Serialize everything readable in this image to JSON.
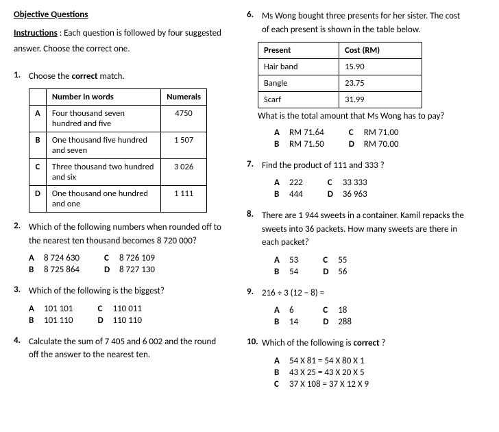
{
  "heading": "Objective Questions",
  "instructions_label": "Instructions",
  "instructions_text": " : Each question is followed by four suggested answer. Choose the correct one.",
  "q1": {
    "num": "1.",
    "text_pre": "Choose the ",
    "text_bold": "correct",
    "text_post": " match.",
    "headers": [
      "",
      "Number in words",
      "Numerals"
    ],
    "rows": [
      {
        "l": "A",
        "words": "Four thousand seven hundred and five",
        "num": "4750"
      },
      {
        "l": "B",
        "words": "One thousand five hundred and seven",
        "num": "1 507"
      },
      {
        "l": "C",
        "words": "Three thousand two hundred and six",
        "num": "3 026"
      },
      {
        "l": "D",
        "words": "One thousand one hundred and one",
        "num": "1 111"
      }
    ]
  },
  "q2": {
    "num": "2.",
    "text": "Which of the following numbers when rounded off to the nearest ten thousand becomes 8 720 000?",
    "opts": {
      "A": "8 724 630",
      "B": "8 725 864",
      "C": "8 726 109",
      "D": "8 727 130"
    }
  },
  "q3": {
    "num": "3.",
    "text": "Which of the following is the biggest?",
    "opts": {
      "A": "101 101",
      "B": "101 110",
      "C": "110 011",
      "D": "110 110"
    }
  },
  "q4": {
    "num": "4.",
    "text": "Calculate the sum of 7 405 and 6 002 and the round off the answer to the nearest ten."
  },
  "q6": {
    "num": "6.",
    "text": "Ms Wong bought three presents for her sister. The cost of each present is shown in the table below.",
    "headers": [
      "Present",
      "Cost (RM)"
    ],
    "rows": [
      {
        "p": "Hair band",
        "c": "15.90"
      },
      {
        "p": "Bangle",
        "c": "23.75"
      },
      {
        "p": "Scarf",
        "c": "31.99"
      }
    ],
    "followup": "What is the total amount that Ms Wong has to pay?",
    "opts": {
      "A": "RM 71.64",
      "B": "RM 71.50",
      "C": "RM 71.00",
      "D": "RM 70.00"
    }
  },
  "q7": {
    "num": "7.",
    "text": "Find the product of 111 and 333 ?",
    "opts": {
      "A": "222",
      "B": "444",
      "C": "33 333",
      "D": "36 963"
    }
  },
  "q8": {
    "num": "8.",
    "text": "There are 1 944 sweets in a container. Kamil repacks the sweets into 36 packets. How many sweets are there in each packet?",
    "opts": {
      "A": "53",
      "B": "54",
      "C": "55",
      "D": "56"
    }
  },
  "q9": {
    "num": "9.",
    "text": "216 ÷ 3 (12 − 8) =",
    "opts": {
      "A": "6",
      "B": "14",
      "C": "18",
      "D": "288"
    }
  },
  "q10": {
    "num": "10.",
    "text_pre": "Which of the following is ",
    "text_bold": "correct",
    "text_post": " ?",
    "opts": {
      "A": "54 X 81 = 54 X 80 X 1",
      "B": "43 X 25 = 43 X 20 X 5",
      "C": "37 X 108 = 37 X 12 X 9"
    }
  }
}
